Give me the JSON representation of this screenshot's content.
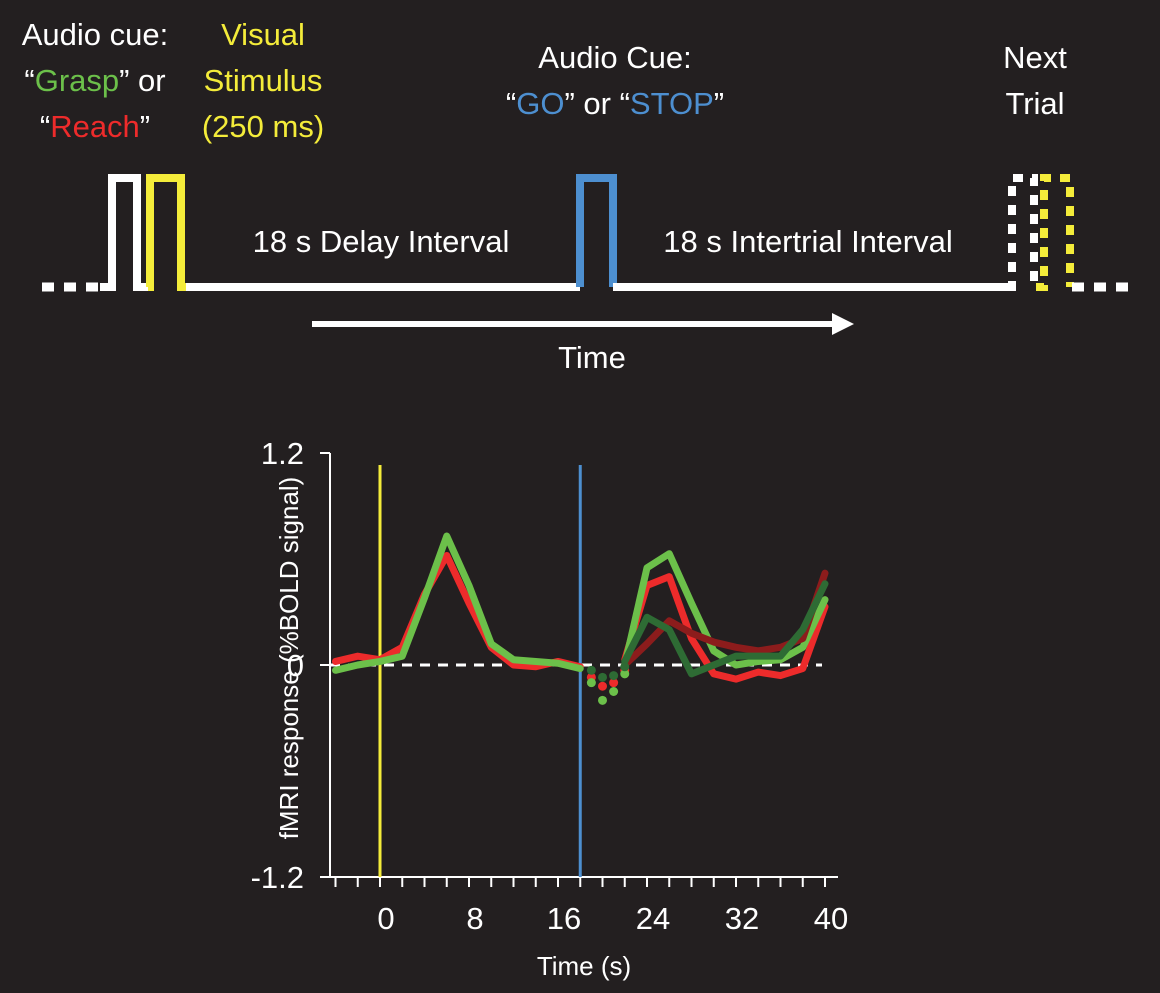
{
  "colors": {
    "background": "#231f20",
    "white": "#ffffff",
    "yellow": "#f4ec3a",
    "blue": "#4d8fd0",
    "grasp": "#6cc04a",
    "reach": "#ed2b2b",
    "grasp_dark": "#2e6b34",
    "reach_dark": "#8c1c1c"
  },
  "timeline": {
    "audio_cue": {
      "line1": "Audio cue:",
      "line2_open": "“",
      "line2_grasp": "Grasp",
      "line2_mid": "” or",
      "line3_open": "“",
      "line3_reach": "Reach",
      "line3_close": "”"
    },
    "visual": {
      "line1": "Visual",
      "line2": "Stimulus",
      "line3": "(250 ms)"
    },
    "go_cue": {
      "line1": "Audio Cue:",
      "line2_open": "“",
      "line2_go": "GO",
      "line2_mid": "” or “",
      "line2_stop": "STOP",
      "line2_close": "”"
    },
    "next": {
      "line1": "Next",
      "line2": "Trial"
    },
    "delay_label": "18 s Delay Interval",
    "iti_label": "18 s Intertrial Interval",
    "time_label": "Time"
  },
  "chart_data": {
    "type": "line",
    "xlabel": "Time (s)",
    "ylabel": "fMRI  response (%BOLD signal)",
    "xlim": [
      -4,
      40
    ],
    "ylim": [
      -1.2,
      1.2
    ],
    "x_ticks": [
      "0",
      "8",
      "16",
      "24",
      "32",
      "40"
    ],
    "y_ticks": [
      "1.2",
      "0",
      "-1.2"
    ],
    "markers": [
      {
        "x": 0,
        "color": "#f4ec3a"
      },
      {
        "x": 18,
        "color": "#4d8fd0"
      }
    ],
    "series": [
      {
        "color": "#ed2b2b",
        "x": [
          -4,
          -2,
          0,
          2,
          4,
          6,
          8,
          10,
          12,
          14,
          16,
          18
        ],
        "y": [
          0.02,
          0.05,
          0.03,
          0.1,
          0.4,
          0.62,
          0.35,
          0.1,
          0.0,
          -0.01,
          0.02,
          -0.01
        ]
      },
      {
        "color": "#6cc04a",
        "x": [
          -4,
          -2,
          0,
          2,
          4,
          6,
          8,
          10,
          12,
          14,
          16,
          18
        ],
        "y": [
          -0.03,
          0.0,
          0.02,
          0.05,
          0.38,
          0.73,
          0.45,
          0.12,
          0.03,
          0.02,
          0.01,
          -0.02
        ]
      },
      {
        "color": "#ed2b2b",
        "x": [
          22,
          24,
          26,
          28,
          30,
          32,
          34,
          36,
          38,
          40
        ],
        "y": [
          0.03,
          0.45,
          0.5,
          0.15,
          -0.05,
          -0.08,
          -0.04,
          -0.06,
          -0.02,
          0.33
        ]
      },
      {
        "color": "#6cc04a",
        "x": [
          22,
          24,
          26,
          28,
          30,
          32,
          34,
          36,
          38,
          40
        ],
        "y": [
          0.0,
          0.55,
          0.63,
          0.35,
          0.08,
          0.0,
          0.02,
          0.03,
          0.1,
          0.37
        ]
      },
      {
        "color": "#8c1c1c",
        "x": [
          22,
          24,
          26,
          28,
          30,
          32,
          34,
          36,
          38,
          40
        ],
        "y": [
          0.0,
          0.12,
          0.25,
          0.18,
          0.13,
          0.1,
          0.08,
          0.1,
          0.15,
          0.52
        ]
      },
      {
        "color": "#2e6b34",
        "x": [
          22,
          24,
          26,
          28,
          30,
          32,
          34,
          36,
          38,
          40
        ],
        "y": [
          0.02,
          0.27,
          0.2,
          -0.05,
          0.0,
          0.05,
          0.05,
          0.05,
          0.2,
          0.46
        ]
      },
      {
        "color": "#ed2b2b",
        "dotted": true,
        "x": [
          19,
          20,
          21,
          22
        ],
        "y": [
          -0.07,
          -0.12,
          -0.1,
          -0.03
        ]
      },
      {
        "color": "#6cc04a",
        "dotted": true,
        "x": [
          19,
          20,
          21,
          22
        ],
        "y": [
          -0.1,
          -0.2,
          -0.15,
          -0.05
        ]
      },
      {
        "color": "#2e6b34",
        "dotted": true,
        "x": [
          19,
          20,
          21,
          22
        ],
        "y": [
          -0.03,
          -0.07,
          -0.06,
          -0.01
        ]
      }
    ]
  }
}
